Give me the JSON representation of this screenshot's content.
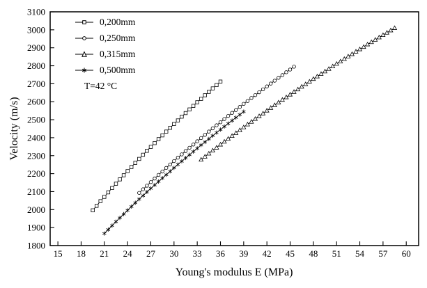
{
  "chart_data": {
    "type": "scatter",
    "title": "",
    "xlabel": "Young's modulus E (MPa)",
    "ylabel": "Velocity (m/s)",
    "xlim": [
      14,
      61.6
    ],
    "ylim": [
      1800,
      3100
    ],
    "x_ticks": [
      15,
      18,
      21,
      24,
      27,
      30,
      33,
      36,
      39,
      42,
      45,
      48,
      51,
      54,
      57,
      60
    ],
    "y_ticks": [
      1800,
      1900,
      2000,
      2100,
      2200,
      2300,
      2400,
      2500,
      2600,
      2700,
      2800,
      2900,
      3000,
      3100
    ],
    "grid": false,
    "legend_position": "top-left-inside",
    "annotation": "T=42 °C",
    "line_color": "#000000",
    "series": [
      {
        "name": "0,200mm",
        "marker": "open-square",
        "points": [
          [
            19.5,
            1996
          ],
          [
            20,
            2021
          ],
          [
            20.5,
            2047
          ],
          [
            21,
            2071
          ],
          [
            21.5,
            2096
          ],
          [
            22,
            2120
          ],
          [
            22.5,
            2144
          ],
          [
            23,
            2168
          ],
          [
            23.5,
            2191
          ],
          [
            24,
            2214
          ],
          [
            24.5,
            2237
          ],
          [
            25,
            2260
          ],
          [
            25.5,
            2282
          ],
          [
            26,
            2305
          ],
          [
            26.5,
            2327
          ],
          [
            27,
            2349
          ],
          [
            27.5,
            2370
          ],
          [
            28,
            2392
          ],
          [
            28.5,
            2413
          ],
          [
            29,
            2434
          ],
          [
            29.5,
            2455
          ],
          [
            30,
            2476
          ],
          [
            30.5,
            2496
          ],
          [
            31,
            2517
          ],
          [
            31.5,
            2537
          ],
          [
            32,
            2557
          ],
          [
            32.5,
            2577
          ],
          [
            33,
            2597
          ],
          [
            33.5,
            2616
          ],
          [
            34,
            2636
          ],
          [
            34.5,
            2655
          ],
          [
            35,
            2674
          ],
          [
            35.5,
            2693
          ],
          [
            36,
            2712
          ]
        ]
      },
      {
        "name": "0,250mm",
        "marker": "open-circle",
        "points": [
          [
            25.5,
            2093
          ],
          [
            26,
            2113
          ],
          [
            26.5,
            2133
          ],
          [
            27,
            2153
          ],
          [
            27.5,
            2173
          ],
          [
            28,
            2193
          ],
          [
            28.5,
            2212
          ],
          [
            29,
            2232
          ],
          [
            29.5,
            2251
          ],
          [
            30,
            2270
          ],
          [
            30.5,
            2289
          ],
          [
            31,
            2307
          ],
          [
            31.5,
            2326
          ],
          [
            32,
            2344
          ],
          [
            32.5,
            2362
          ],
          [
            33,
            2380
          ],
          [
            33.5,
            2398
          ],
          [
            34,
            2416
          ],
          [
            34.5,
            2434
          ],
          [
            35,
            2452
          ],
          [
            35.5,
            2469
          ],
          [
            36,
            2486
          ],
          [
            36.5,
            2504
          ],
          [
            37,
            2521
          ],
          [
            37.5,
            2538
          ],
          [
            38,
            2554
          ],
          [
            38.5,
            2571
          ],
          [
            39,
            2588
          ],
          [
            39.5,
            2604
          ],
          [
            40,
            2621
          ],
          [
            40.5,
            2637
          ],
          [
            41,
            2653
          ],
          [
            41.5,
            2669
          ],
          [
            42,
            2685
          ],
          [
            42.5,
            2701
          ],
          [
            43,
            2717
          ],
          [
            43.5,
            2733
          ],
          [
            44,
            2748
          ],
          [
            44.5,
            2764
          ],
          [
            45,
            2779
          ],
          [
            45.5,
            2795
          ]
        ]
      },
      {
        "name": "0,315mm",
        "marker": "open-triangle",
        "points": [
          [
            33.5,
            2278
          ],
          [
            34,
            2295
          ],
          [
            34.5,
            2312
          ],
          [
            35,
            2329
          ],
          [
            35.5,
            2345
          ],
          [
            36,
            2362
          ],
          [
            36.5,
            2378
          ],
          [
            37,
            2394
          ],
          [
            37.5,
            2410
          ],
          [
            38,
            2426
          ],
          [
            38.5,
            2442
          ],
          [
            39,
            2458
          ],
          [
            39.5,
            2474
          ],
          [
            40,
            2489
          ],
          [
            40.5,
            2505
          ],
          [
            41,
            2520
          ],
          [
            41.5,
            2535
          ],
          [
            42,
            2551
          ],
          [
            42.5,
            2566
          ],
          [
            43,
            2581
          ],
          [
            43.5,
            2596
          ],
          [
            44,
            2611
          ],
          [
            44.5,
            2625
          ],
          [
            45,
            2640
          ],
          [
            45.5,
            2655
          ],
          [
            46,
            2669
          ],
          [
            46.5,
            2684
          ],
          [
            47,
            2698
          ],
          [
            47.5,
            2712
          ],
          [
            48,
            2727
          ],
          [
            48.5,
            2741
          ],
          [
            49,
            2755
          ],
          [
            49.5,
            2769
          ],
          [
            50,
            2783
          ],
          [
            50.5,
            2797
          ],
          [
            51,
            2811
          ],
          [
            51.5,
            2824
          ],
          [
            52,
            2838
          ],
          [
            52.5,
            2852
          ],
          [
            53,
            2865
          ],
          [
            53.5,
            2879
          ],
          [
            54,
            2892
          ],
          [
            54.5,
            2905
          ],
          [
            55,
            2919
          ],
          [
            55.5,
            2932
          ],
          [
            56,
            2945
          ],
          [
            56.5,
            2958
          ],
          [
            57,
            2971
          ],
          [
            57.5,
            2984
          ],
          [
            58,
            2997
          ],
          [
            58.5,
            3010
          ]
        ]
      },
      {
        "name": "0,500mm",
        "marker": "star",
        "points": [
          [
            21,
            1867
          ],
          [
            21.5,
            1889
          ],
          [
            22,
            1911
          ],
          [
            22.5,
            1933
          ],
          [
            23,
            1954
          ],
          [
            23.5,
            1975
          ],
          [
            24,
            1996
          ],
          [
            24.5,
            2017
          ],
          [
            25,
            2038
          ],
          [
            25.5,
            2058
          ],
          [
            26,
            2078
          ],
          [
            26.5,
            2098
          ],
          [
            27,
            2118
          ],
          [
            27.5,
            2137
          ],
          [
            28,
            2156
          ],
          [
            28.5,
            2175
          ],
          [
            29,
            2194
          ],
          [
            29.5,
            2213
          ],
          [
            30,
            2232
          ],
          [
            30.5,
            2251
          ],
          [
            31,
            2269
          ],
          [
            31.5,
            2287
          ],
          [
            32,
            2305
          ],
          [
            32.5,
            2323
          ],
          [
            33,
            2341
          ],
          [
            33.5,
            2359
          ],
          [
            34,
            2376
          ],
          [
            34.5,
            2393
          ],
          [
            35,
            2411
          ],
          [
            35.5,
            2428
          ],
          [
            36,
            2445
          ],
          [
            36.5,
            2462
          ],
          [
            37,
            2479
          ],
          [
            37.5,
            2495
          ],
          [
            38,
            2512
          ],
          [
            38.5,
            2528
          ],
          [
            39,
            2545
          ]
        ]
      }
    ]
  }
}
